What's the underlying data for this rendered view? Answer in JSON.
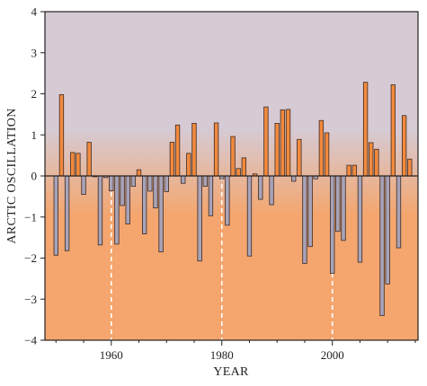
{
  "chart_data": {
    "type": "bar",
    "xlabel": "YEAR",
    "ylabel": "ARCTIC OSCILLATION",
    "xlim": [
      1948,
      2015.5
    ],
    "ylim": [
      -4,
      4
    ],
    "y_ticks": [
      -4,
      -3,
      -2,
      -1,
      0,
      1,
      2,
      3,
      4
    ],
    "x_ticks": [
      1960,
      1980,
      2000
    ],
    "reference_lines": [
      1960,
      1980,
      2000
    ],
    "grid": false,
    "legend": "none",
    "x": [
      1950,
      1951,
      1952,
      1953,
      1954,
      1955,
      1956,
      1957,
      1958,
      1959,
      1960,
      1961,
      1962,
      1963,
      1964,
      1965,
      1966,
      1967,
      1968,
      1969,
      1970,
      1971,
      1972,
      1973,
      1974,
      1975,
      1976,
      1977,
      1978,
      1979,
      1980,
      1981,
      1982,
      1983,
      1984,
      1985,
      1986,
      1987,
      1988,
      1989,
      1990,
      1991,
      1992,
      1993,
      1994,
      1995,
      1996,
      1997,
      1998,
      1999,
      2000,
      2001,
      2002,
      2003,
      2004,
      2005,
      2006,
      2007,
      2008,
      2009,
      2010,
      2011,
      2012,
      2013,
      2014
    ],
    "values": [
      -1.93,
      1.98,
      -1.82,
      0.57,
      0.55,
      -0.45,
      0.82,
      -0.02,
      -1.68,
      -0.04,
      -0.36,
      -1.66,
      -0.72,
      -1.17,
      -0.25,
      0.15,
      -1.41,
      -0.37,
      -0.78,
      -1.85,
      -0.38,
      0.82,
      1.24,
      -0.18,
      0.55,
      1.28,
      -2.07,
      -0.25,
      -0.97,
      1.29,
      -0.07,
      -1.2,
      0.96,
      0.18,
      0.44,
      -1.95,
      0.05,
      -0.57,
      1.68,
      -0.7,
      1.28,
      1.61,
      1.62,
      -0.13,
      0.89,
      -2.13,
      -1.72,
      -0.07,
      1.35,
      1.05,
      -2.37,
      -1.35,
      -1.57,
      0.26,
      0.26,
      -2.1,
      2.28,
      0.81,
      0.65,
      -3.4,
      -2.63,
      2.22,
      -1.75,
      1.47,
      0.41
    ],
    "colors": {
      "positive": "#f28a3e",
      "negative": "#a8a3b8",
      "bar_outline": "#3a2a24",
      "upper_background": "#d6cad4",
      "lower_background": "#f4a66e",
      "zero_line": "#222222",
      "reference_line": "#ffffff"
    }
  }
}
